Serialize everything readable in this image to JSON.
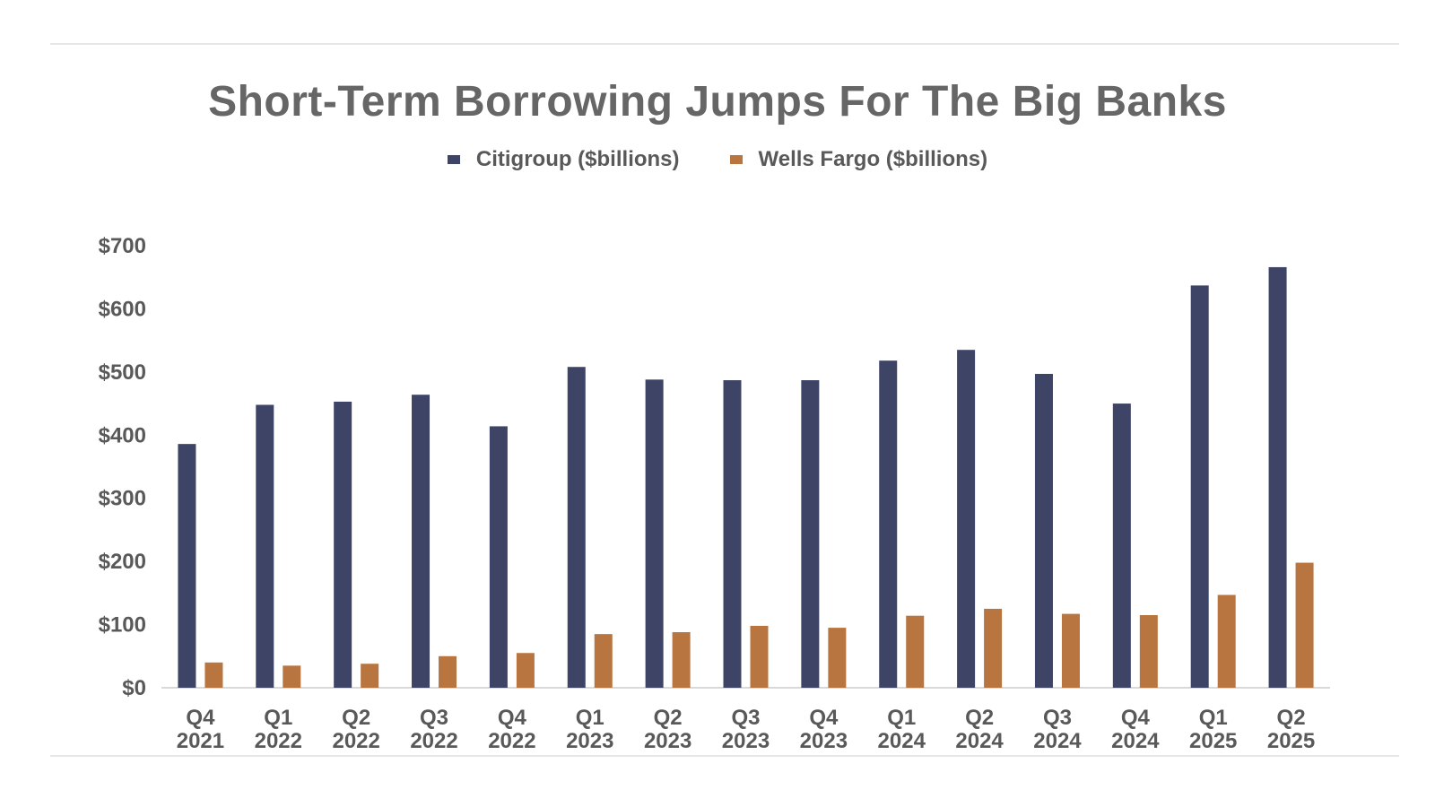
{
  "chart_data": {
    "type": "bar",
    "title": "Short-Term Borrowing Jumps For The Big Banks",
    "categories": [
      [
        "Q4",
        "2021"
      ],
      [
        "Q1",
        "2022"
      ],
      [
        "Q2",
        "2022"
      ],
      [
        "Q3",
        "2022"
      ],
      [
        "Q4",
        "2022"
      ],
      [
        "Q1",
        "2023"
      ],
      [
        "Q2",
        "2023"
      ],
      [
        "Q3",
        "2023"
      ],
      [
        "Q4",
        "2023"
      ],
      [
        "Q1",
        "2024"
      ],
      [
        "Q2",
        "2024"
      ],
      [
        "Q3",
        "2024"
      ],
      [
        "Q4",
        "2024"
      ],
      [
        "Q1",
        "2025"
      ],
      [
        "Q2",
        "2025"
      ]
    ],
    "series": [
      {
        "name": "Citigroup ($billions)",
        "color": "#3d4466",
        "values": [
          386,
          448,
          453,
          464,
          414,
          508,
          488,
          487,
          487,
          518,
          535,
          497,
          450,
          637,
          666
        ]
      },
      {
        "name": "Wells Fargo ($billions)",
        "color": "#b87540",
        "values": [
          40,
          35,
          38,
          50,
          55,
          85,
          88,
          98,
          95,
          114,
          125,
          117,
          115,
          147,
          198
        ]
      }
    ],
    "y_ticks": [
      "$0",
      "$100",
      "$200",
      "$300",
      "$400",
      "$500",
      "$600",
      "$700"
    ],
    "ylim": [
      0,
      700
    ],
    "xlabel": "",
    "ylabel": "",
    "grid": false,
    "legend_position": "top-center"
  }
}
